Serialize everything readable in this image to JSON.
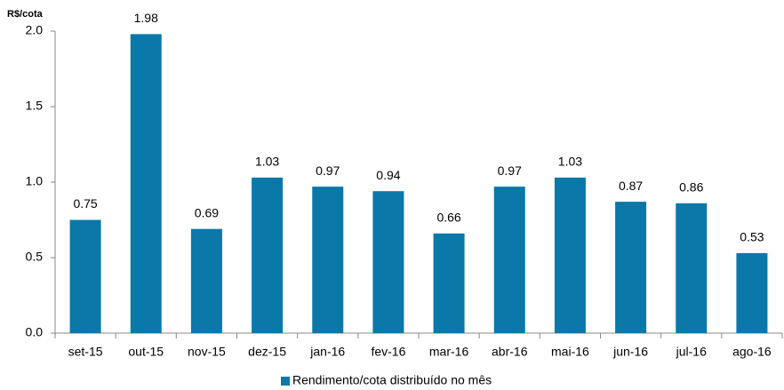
{
  "chart_data": {
    "type": "bar",
    "y_label": "R$/cota",
    "categories": [
      "set-15",
      "out-15",
      "nov-15",
      "dez-15",
      "jan-16",
      "fev-16",
      "mar-16",
      "abr-16",
      "mai-16",
      "jun-16",
      "jul-16",
      "ago-16"
    ],
    "series": [
      {
        "name": "Rendimento/cota distribuído no mês",
        "color": "#0a78a8",
        "values": [
          0.75,
          1.98,
          0.69,
          1.03,
          0.97,
          0.94,
          0.66,
          0.97,
          1.03,
          0.87,
          0.86,
          0.53
        ]
      }
    ],
    "ylim": [
      0,
      2
    ],
    "yticks": [
      {
        "value": 0,
        "label": "0.0"
      },
      0.5,
      {
        "value": 1,
        "label": "1.0"
      },
      1.5,
      {
        "value": 2,
        "label": "2.0"
      }
    ],
    "grid": false
  }
}
